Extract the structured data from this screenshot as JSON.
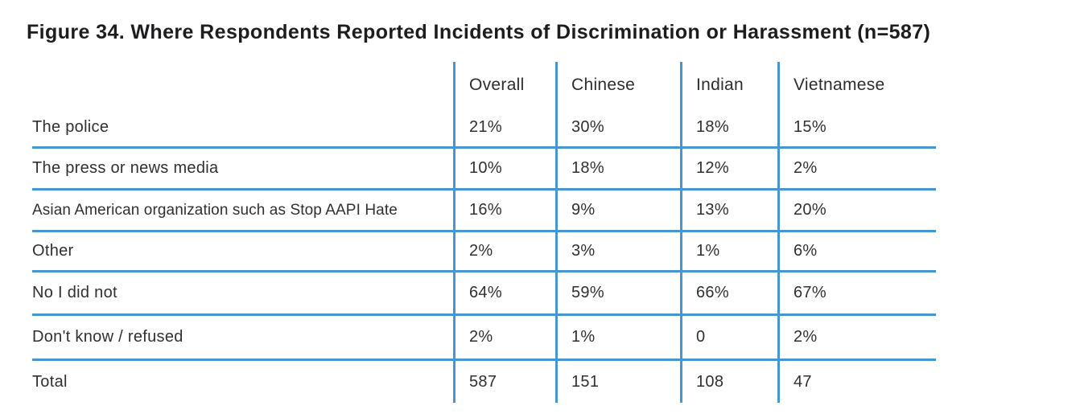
{
  "figure": {
    "title": "Figure 34. Where Respondents Reported Incidents of Discrimination or Harassment (n=587)"
  },
  "table": {
    "columns": [
      "Overall",
      "Chinese",
      "Indian",
      "Vietnamese"
    ],
    "rows": [
      {
        "label": "The police",
        "values": [
          "21%",
          "30%",
          "18%",
          "15%"
        ],
        "small": false,
        "rule_below": true
      },
      {
        "label": "The press or news media",
        "values": [
          "10%",
          "18%",
          "12%",
          "2%"
        ],
        "small": false,
        "rule_below": true
      },
      {
        "label": "Asian American organization such as Stop AAPI Hate",
        "values": [
          "16%",
          "9%",
          "13%",
          "20%"
        ],
        "small": true,
        "rule_below": true
      },
      {
        "label": "Other",
        "values": [
          "2%",
          "3%",
          "1%",
          "6%"
        ],
        "small": false,
        "rule_below": true
      },
      {
        "label": "No I did not",
        "values": [
          "64%",
          "59%",
          "66%",
          "67%"
        ],
        "small": false,
        "rule_below": true
      },
      {
        "label": "Don't know / refused",
        "values": [
          "2%",
          "1%",
          "0",
          "2%"
        ],
        "small": false,
        "rule_below": true
      },
      {
        "label": "Total",
        "values": [
          "587",
          "151",
          "108",
          "47"
        ],
        "small": false,
        "rule_below": false
      }
    ]
  },
  "colors": {
    "grid_blue": "#4596d1",
    "title_text": "#1d1d1f",
    "body_text": "#303030"
  },
  "chart_data": {
    "type": "table",
    "title": "Figure 34. Where Respondents Reported Incidents of Discrimination or Harassment (n=587)",
    "n": 587,
    "columns": [
      "",
      "Overall",
      "Chinese",
      "Indian",
      "Vietnamese"
    ],
    "rows": [
      [
        "The police",
        "21%",
        "30%",
        "18%",
        "15%"
      ],
      [
        "The press or news media",
        "10%",
        "18%",
        "12%",
        "2%"
      ],
      [
        "Asian American organization such as Stop AAPI Hate",
        "16%",
        "9%",
        "13%",
        "20%"
      ],
      [
        "Other",
        "2%",
        "3%",
        "1%",
        "6%"
      ],
      [
        "No I did not",
        "64%",
        "59%",
        "66%",
        "67%"
      ],
      [
        "Don't know / refused",
        "2%",
        "1%",
        "0",
        "2%"
      ],
      [
        "Total",
        "587",
        "151",
        "108",
        "47"
      ]
    ],
    "layout": {
      "grid": "blue vertical dividers between value columns; horizontal rules below each data row except Total; no outer border"
    }
  }
}
